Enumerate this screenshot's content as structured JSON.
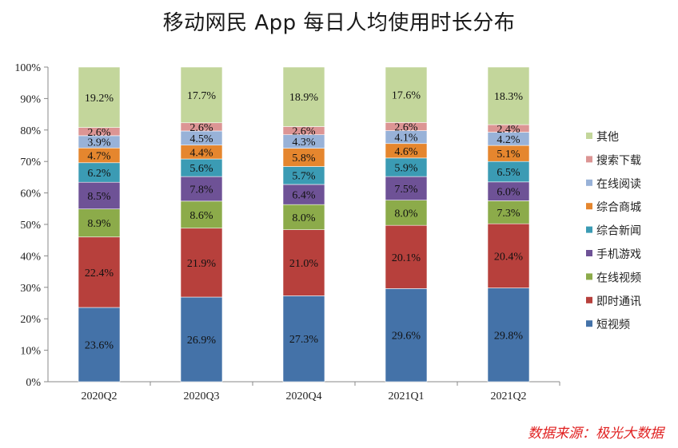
{
  "chart_data": {
    "type": "bar",
    "stacked": true,
    "title": "移动网民 App 每日人均使用时长分布",
    "categories": [
      "2020Q2",
      "2020Q3",
      "2020Q4",
      "2021Q1",
      "2021Q2"
    ],
    "ylim": [
      0,
      100
    ],
    "yticks": [
      "0%",
      "10%",
      "20%",
      "30%",
      "40%",
      "50%",
      "60%",
      "70%",
      "80%",
      "90%",
      "100%"
    ],
    "series": [
      {
        "name": "短视频",
        "color": "#4472a8",
        "values": [
          23.6,
          26.9,
          27.3,
          29.6,
          29.8
        ],
        "labels": [
          "23.6%",
          "26.9%",
          "27.3%",
          "29.6%",
          "29.8%"
        ]
      },
      {
        "name": "即时通讯",
        "color": "#b7403c",
        "values": [
          22.4,
          21.9,
          21.0,
          20.1,
          20.4
        ],
        "labels": [
          "22.4%",
          "21.9%",
          "21.0%",
          "20.1%",
          "20.4%"
        ]
      },
      {
        "name": "在线视频",
        "color": "#8cab4a",
        "values": [
          8.9,
          8.6,
          8.0,
          8.0,
          7.3
        ],
        "labels": [
          "8.9%",
          "8.6%",
          "8.0%",
          "8.0%",
          "7.3%"
        ]
      },
      {
        "name": "手机游戏",
        "color": "#6e5296",
        "values": [
          8.5,
          7.8,
          6.4,
          7.5,
          6.0
        ],
        "labels": [
          "8.5%",
          "7.8%",
          "6.4%",
          "7.5%",
          "6.0%"
        ]
      },
      {
        "name": "综合新闻",
        "color": "#3b9bb4",
        "values": [
          6.2,
          5.6,
          5.7,
          5.9,
          6.5
        ],
        "labels": [
          "6.2%",
          "5.6%",
          "5.7%",
          "5.9%",
          "6.5%"
        ]
      },
      {
        "name": "综合商城",
        "color": "#e5862e",
        "values": [
          4.7,
          4.4,
          5.8,
          4.6,
          5.1
        ],
        "labels": [
          "4.7%",
          "4.4%",
          "5.8%",
          "4.6%",
          "5.1%"
        ]
      },
      {
        "name": "在线阅读",
        "color": "#98b2d8",
        "values": [
          3.9,
          4.5,
          4.3,
          4.1,
          4.2
        ],
        "labels": [
          "3.9%",
          "4.5%",
          "4.3%",
          "4.1%",
          "4.2%"
        ]
      },
      {
        "name": "搜索下载",
        "color": "#dc9594",
        "values": [
          2.6,
          2.6,
          2.6,
          2.6,
          2.4
        ],
        "labels": [
          "2.6%",
          "2.6%",
          "2.6%",
          "2.6%",
          "2.4%"
        ]
      },
      {
        "name": "其他",
        "color": "#c3d69b",
        "values": [
          19.2,
          17.7,
          18.9,
          17.6,
          18.3
        ],
        "labels": [
          "19.2%",
          "17.7%",
          "18.9%",
          "17.6%",
          "18.3%"
        ]
      }
    ],
    "legend": [
      "其他",
      "搜索下载",
      "在线阅读",
      "综合商城",
      "综合新闻",
      "手机游戏",
      "在线视频",
      "即时通讯",
      "短视频"
    ],
    "legend_position": "right"
  },
  "source": "数据来源：极光大数据"
}
